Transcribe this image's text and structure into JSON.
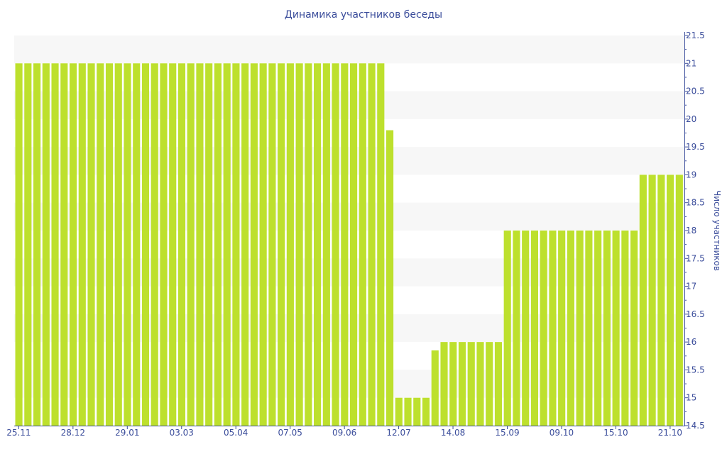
{
  "chart_data": {
    "type": "bar",
    "title": "Динамика участников беседы",
    "xlabel": "",
    "ylabel": "Число участников",
    "ylim": [
      14.5,
      21.5
    ],
    "yticks": [
      "14.5",
      "15",
      "15.5",
      "16",
      "16.5",
      "17",
      "17.5",
      "18",
      "18.5",
      "19",
      "19.5",
      "20",
      "20.5",
      "21",
      "21.5"
    ],
    "x_tick_labels": [
      "25.11",
      "28.12",
      "29.01",
      "03.03",
      "05.04",
      "07.05",
      "09.06",
      "12.07",
      "14.08",
      "15.09",
      "09.10",
      "15.10",
      "21.10"
    ],
    "x_tick_every": 6,
    "values": [
      21,
      21,
      21,
      21,
      21,
      21,
      21,
      21,
      21,
      21,
      21,
      21,
      21,
      21,
      21,
      21,
      21,
      21,
      21,
      21,
      21,
      21,
      21,
      21,
      21,
      21,
      21,
      21,
      21,
      21,
      21,
      21,
      21,
      21,
      21,
      21,
      21,
      21,
      21,
      21,
      21,
      19.8,
      15,
      15,
      15,
      15,
      15.85,
      16,
      16,
      16,
      16,
      16,
      16,
      16,
      18,
      18,
      18,
      18,
      18,
      18,
      18,
      18,
      18,
      18,
      18,
      18,
      18,
      18,
      18,
      19,
      19,
      19,
      19,
      19
    ],
    "grid": "alternating bands",
    "y_axis_position": "right",
    "colors": {
      "bar": "#bde02d",
      "text": "#3b4d9b",
      "band": "#f7f7f7"
    }
  }
}
